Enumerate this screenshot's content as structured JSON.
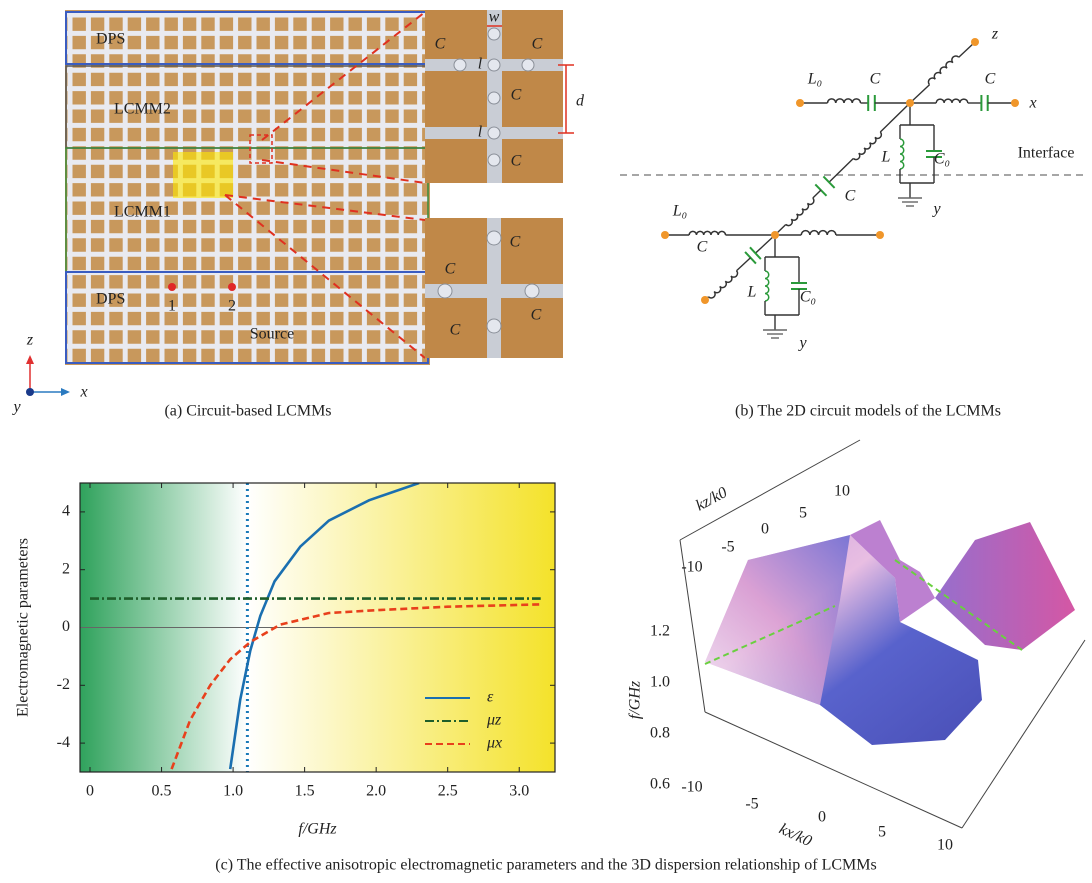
{
  "panel_a": {
    "caption": "(a) Circuit-based LCMMs",
    "regions": [
      "DPS",
      "LCMM2",
      "LCMM1",
      "DPS"
    ],
    "probes": [
      "1",
      "2"
    ],
    "source": "Source",
    "axes": {
      "z": "z",
      "x": "x",
      "y": "y"
    },
    "cell_labels": {
      "capacitor": "C",
      "spacing": "d",
      "inductor": "l",
      "width": "w"
    }
  },
  "panel_b": {
    "caption": "(b) The 2D circuit models of the LCMMs",
    "axes": {
      "z": "z",
      "x": "x",
      "y": "y"
    },
    "components": {
      "L0": "L₀",
      "C": "C",
      "L": "L",
      "C0": "C₀"
    },
    "interface": "Interface"
  },
  "panel_d": {
    "axis_labels": {
      "kz": "kz/k0",
      "kx": "kx/k0",
      "f": "f/GHz"
    },
    "kz_ticks": [
      "10",
      "5",
      "0",
      "-5",
      "-10"
    ],
    "f_ticks": [
      "1.2",
      "1.0",
      "0.8",
      "0.6"
    ],
    "kx_ticks": [
      "-10",
      "-5",
      "0",
      "5",
      "10"
    ]
  },
  "caption_c": "(c) The effective anisotropic electromagnetic parameters and the 3D dispersion relationship of LCMMs",
  "chart_data": {
    "type": "line",
    "xlabel": "f/GHz",
    "ylabel": "Electromagnetic  parameters",
    "xlim": [
      -0.07,
      3.25
    ],
    "ylim": [
      -5,
      5
    ],
    "xticks": [
      0,
      0.5,
      {
        "value": 1,
        "label": "1.0"
      },
      1.5,
      {
        "value": 2,
        "label": "2.0"
      },
      2.5,
      {
        "value": 3,
        "label": "3.0"
      }
    ],
    "yticks": [
      -4,
      -2,
      0,
      2,
      4
    ],
    "legend": "lower right",
    "reference_x": 1.1,
    "series": [
      {
        "name": "ε",
        "color": "#1a6fb0",
        "linestyle": "solid",
        "x": [
          0.98,
          1.05,
          1.12,
          1.19,
          1.29,
          1.47,
          1.67,
          1.95,
          2.3
        ],
        "values": [
          -4.9,
          -2.5,
          -0.8,
          0.4,
          1.6,
          2.8,
          3.7,
          4.4,
          5.0
        ]
      },
      {
        "name": "μz",
        "color": "#1e5e2a",
        "linestyle": "dashdot",
        "x": [
          0,
          3.15
        ],
        "values": [
          1,
          1
        ]
      },
      {
        "name": "μx",
        "color": "#e8401c",
        "linestyle": "dashed",
        "x": [
          0.57,
          0.7,
          0.84,
          0.98,
          1.12,
          1.33,
          1.67,
          2.0,
          2.5,
          3.15
        ],
        "values": [
          -4.9,
          -3.2,
          -2.0,
          -1.1,
          -0.5,
          0.1,
          0.5,
          0.6,
          0.72,
          0.8
        ]
      }
    ]
  }
}
